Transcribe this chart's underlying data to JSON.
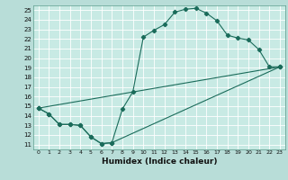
{
  "xlabel": "Humidex (Indice chaleur)",
  "xlim": [
    -0.5,
    23.5
  ],
  "ylim": [
    10.5,
    25.5
  ],
  "xticks": [
    0,
    1,
    2,
    3,
    4,
    5,
    6,
    7,
    8,
    9,
    10,
    11,
    12,
    13,
    14,
    15,
    16,
    17,
    18,
    19,
    20,
    21,
    22,
    23
  ],
  "yticks": [
    11,
    12,
    13,
    14,
    15,
    16,
    17,
    18,
    19,
    20,
    21,
    22,
    23,
    24,
    25
  ],
  "bg_color": "#b8ddd8",
  "plot_bg_color": "#c8eae4",
  "line_color": "#1a6b5a",
  "grid_color": "#ffffff",
  "xlabel_bg": "#7ab8b0",
  "line1_x": [
    0,
    1,
    2,
    3,
    4,
    5,
    6,
    7,
    8,
    9,
    10,
    11,
    12,
    13,
    14,
    15,
    16,
    17,
    18,
    19,
    20,
    21,
    22,
    23
  ],
  "line1_y": [
    14.8,
    14.2,
    13.1,
    13.1,
    13.0,
    11.8,
    11.1,
    11.2,
    14.7,
    16.5,
    22.2,
    22.9,
    23.5,
    24.8,
    25.1,
    25.2,
    24.7,
    23.9,
    22.4,
    22.1,
    21.9,
    20.9,
    19.1,
    19.1
  ],
  "line2_x": [
    0,
    1,
    2,
    3,
    4,
    5,
    6,
    7,
    23
  ],
  "line2_y": [
    14.8,
    14.2,
    13.1,
    13.1,
    13.0,
    11.8,
    11.1,
    11.2,
    19.1
  ],
  "line3_x": [
    0,
    23
  ],
  "line3_y": [
    14.8,
    19.1
  ]
}
